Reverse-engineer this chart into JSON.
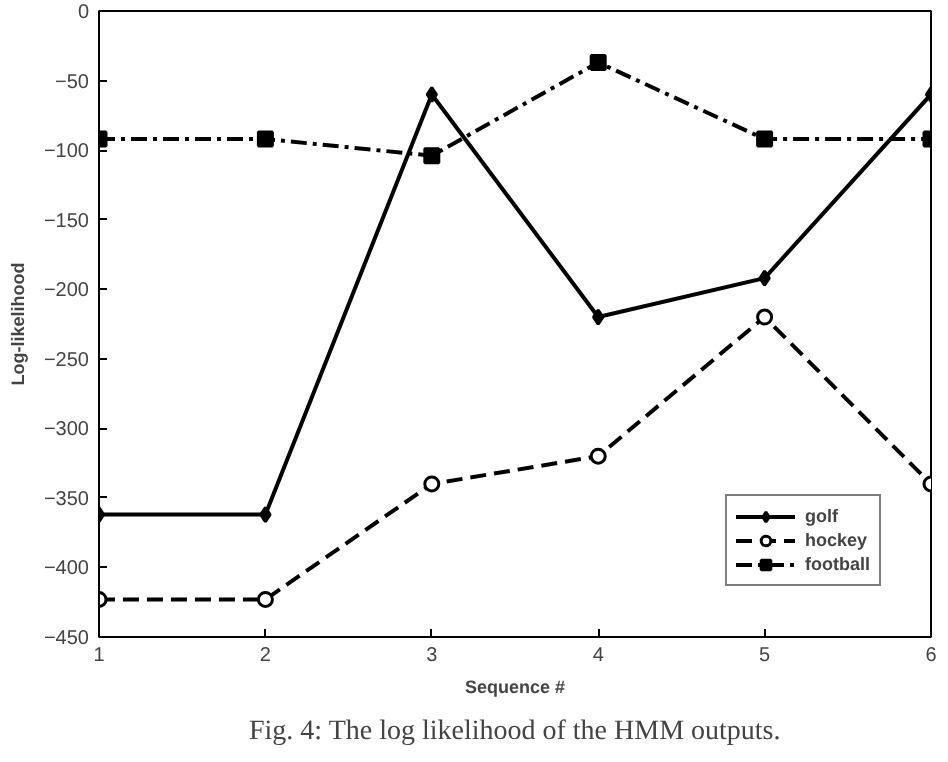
{
  "chart_data": {
    "type": "line",
    "xlabel": "Sequence #",
    "ylabel": "Log-likelihood",
    "x": [
      1,
      2,
      3,
      4,
      5,
      6
    ],
    "xlim": [
      1,
      6
    ],
    "xticks": [
      1,
      2,
      3,
      4,
      5,
      6
    ],
    "ylim": [
      -450,
      0
    ],
    "yticks": [
      -450,
      -400,
      -350,
      -300,
      -250,
      -200,
      -150,
      -100,
      -50,
      0
    ],
    "grid": false,
    "legend": "bottom right",
    "series": [
      {
        "name": "golf",
        "color": "#000000",
        "values": [
          -362,
          -362,
          -60,
          -220,
          -192,
          -60
        ],
        "marker": "diamond",
        "line_style": "solid"
      },
      {
        "name": "hockey",
        "color": "#000000",
        "values": [
          -423,
          -423,
          -340,
          -320,
          -220,
          -340
        ],
        "marker": "circle",
        "line_style": "dashed"
      },
      {
        "name": "football",
        "color": "#000000",
        "values": [
          -92,
          -92,
          -104,
          -37,
          -92,
          -92
        ],
        "marker": "square",
        "line_style": "dashdot"
      }
    ],
    "annotations": [
      "Fig. 4: The log likelihood of the HMM outputs."
    ]
  }
}
